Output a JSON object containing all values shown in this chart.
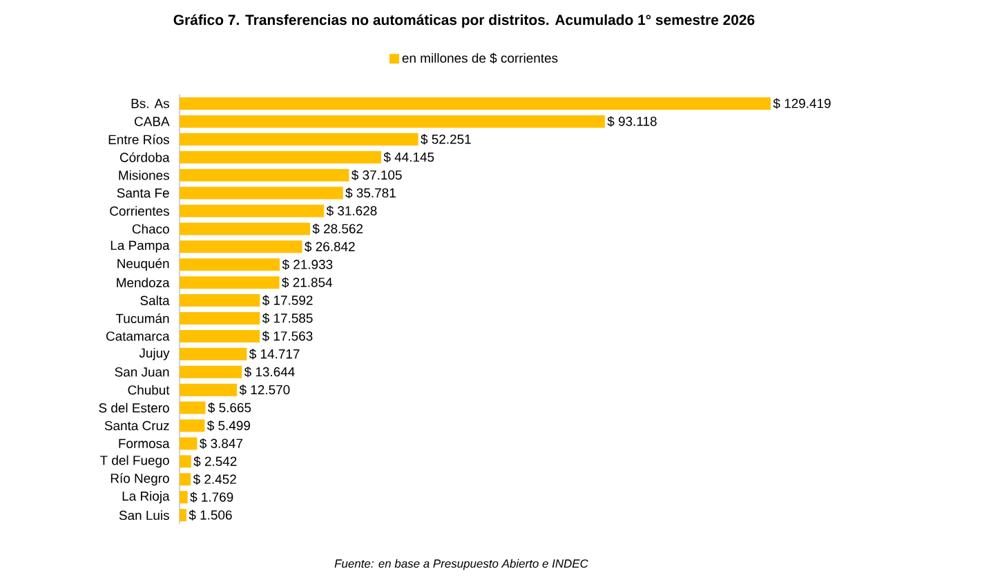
{
  "chart_data": {
    "type": "bar",
    "orientation": "horizontal",
    "title": "Gráfico 7. Transferencias no automáticas por distritos. Acumulado 1° semestre 2026",
    "categories": [
      "Bs. As",
      "CABA",
      "Entre Ríos",
      "Córdoba",
      "Misiones",
      "Santa Fe",
      "Corrientes",
      "Chaco",
      "La Pampa",
      "Neuquén",
      "Mendoza",
      "Salta",
      "Tucumán",
      "Catamarca",
      "Jujuy",
      "San Juan",
      "Chubut",
      "S del Estero",
      "Santa Cruz",
      "Formosa",
      "T del Fuego",
      "Río Negro",
      "La Rioja",
      "San Luis"
    ],
    "series": [
      {
        "name": "en millones de $ corrientes",
        "color": "#ffc000",
        "values": [
          129419,
          93118,
          52251,
          44145,
          37105,
          35781,
          31628,
          28562,
          26842,
          21933,
          21854,
          17592,
          17585,
          17563,
          14717,
          13644,
          12570,
          5665,
          5499,
          3847,
          2542,
          2452,
          1769,
          1506
        ],
        "value_labels": [
          "$ 129.419",
          "$ 93.118",
          "$ 52.251",
          "$ 44.145",
          "$ 37.105",
          "$ 35.781",
          "$ 31.628",
          "$ 28.562",
          "$ 26.842",
          "$ 21.933",
          "$ 21.854",
          "$ 17.592",
          "$ 17.585",
          "$ 17.563",
          "$ 14.717",
          "$ 13.644",
          "$ 12.570",
          "$ 5.665",
          "$ 5.499",
          "$ 3.847",
          "$ 2.542",
          "$ 2.452",
          "$ 1.769",
          "$ 1.506"
        ]
      }
    ],
    "legend": "top",
    "tick_labels": "y",
    "annotations": [
      "Fuente: en base a Presupuesto Abierto e INDEC"
    ]
  }
}
